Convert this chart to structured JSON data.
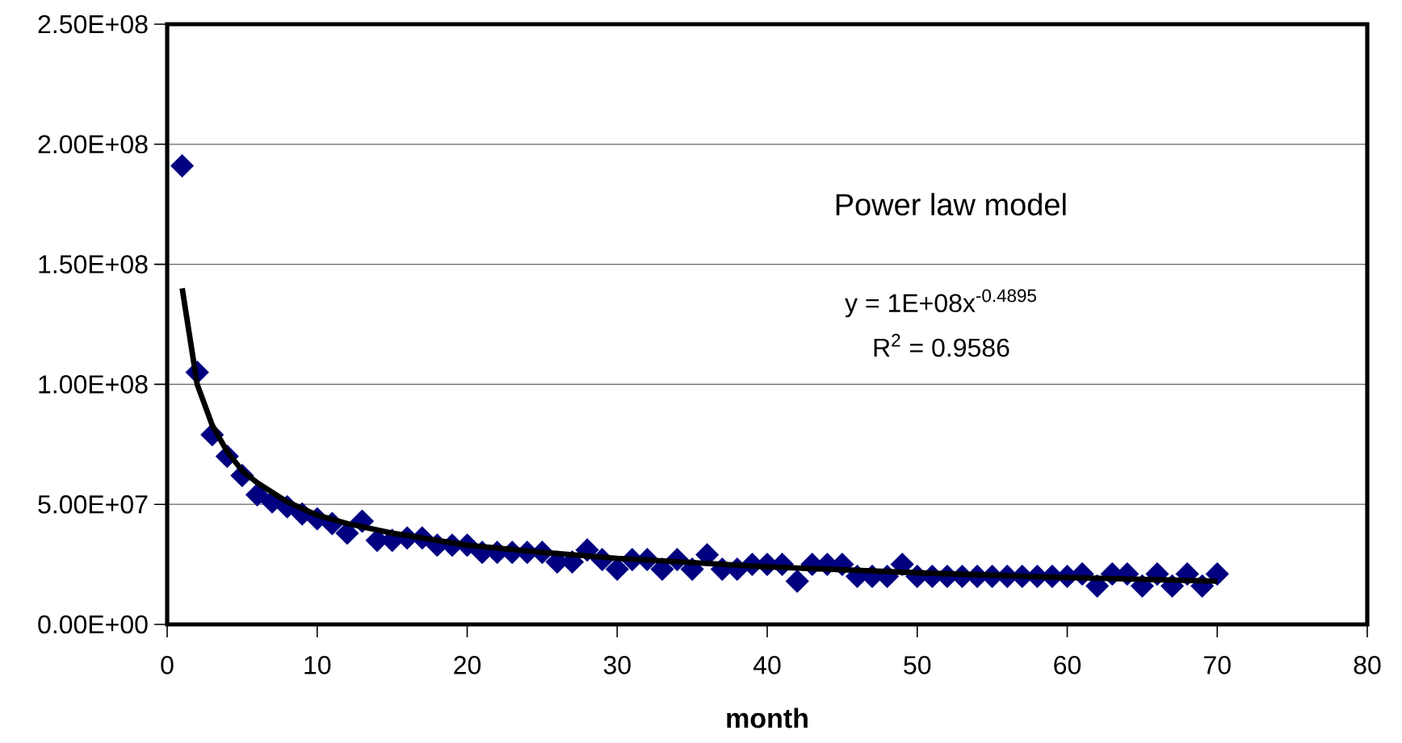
{
  "chart_data": {
    "type": "scatter",
    "xlabel": "month",
    "annotations": [
      "Power law model",
      "y = 1E+08x$^{-0.4895}$",
      "R$^{2}$ = 0.9586"
    ],
    "series": [
      {
        "marker": "diamond",
        "color": "#000080",
        "x": [
          1,
          2,
          3,
          4,
          5,
          6,
          7,
          8,
          9,
          10,
          11,
          12,
          13,
          14,
          15,
          16,
          17,
          18,
          19,
          20,
          21,
          22,
          23,
          24,
          25,
          26,
          27,
          28,
          29,
          30,
          31,
          32,
          33,
          34,
          35,
          36,
          37,
          38,
          39,
          40,
          41,
          42,
          43,
          44,
          45,
          46,
          47,
          48,
          49,
          50,
          51,
          52,
          53,
          54,
          55,
          56,
          57,
          58,
          59,
          60,
          61,
          62,
          63,
          64,
          65,
          66,
          67,
          68,
          69,
          70
        ],
        "values": [
          191000000,
          105000000,
          79000000,
          70000000,
          62000000,
          54000000,
          51000000,
          49000000,
          46000000,
          44000000,
          42000000,
          38000000,
          43000000,
          35000000,
          35000000,
          36000000,
          36000000,
          33000000,
          33000000,
          33000000,
          30000000,
          30000000,
          30000000,
          30000000,
          30000000,
          26000000,
          26000000,
          31000000,
          27000000,
          23000000,
          27000000,
          27000000,
          23000000,
          27000000,
          23000000,
          29000000,
          23000000,
          23000000,
          25000000,
          25000000,
          25000000,
          18000000,
          25000000,
          25000000,
          25000000,
          20000000,
          20000000,
          20000000,
          25000000,
          20000000,
          20000000,
          20000000,
          20000000,
          20000000,
          20000000,
          20000000,
          20000000,
          20000000,
          20000000,
          20000000,
          21000000,
          16000000,
          21000000,
          21000000,
          16000000,
          21000000,
          16000000,
          21000000,
          16000000,
          21000000
        ]
      },
      {
        "type": "line",
        "marker": "none",
        "color": "#000000",
        "x": [
          1,
          2,
          3,
          4,
          5,
          6,
          8,
          10,
          12,
          15,
          20,
          25,
          30,
          40,
          50,
          60,
          70
        ],
        "values": [
          140000000,
          100000000,
          83000000,
          72000000,
          64000000,
          59000000,
          51000000,
          45500000,
          42000000,
          38000000,
          33000000,
          30000000,
          27500000,
          24000000,
          21500000,
          19500000,
          18000000
        ]
      }
    ],
    "xlim": [
      0,
      80
    ],
    "xticks": [
      0,
      10,
      20,
      30,
      40,
      50,
      60,
      70,
      80
    ],
    "ylim": [
      0,
      250000000
    ],
    "yticks": [
      {
        "value": 0,
        "label": "0.00E+00"
      },
      {
        "value": 50000000,
        "label": "5.00E+07"
      },
      {
        "value": 100000000,
        "label": "1.00E+08"
      },
      {
        "value": 150000000,
        "label": "1.50E+08"
      },
      {
        "value": 200000000,
        "label": "2.00E+08"
      },
      {
        "value": 250000000,
        "label": "2.50E+08"
      }
    ],
    "grid": "y"
  }
}
